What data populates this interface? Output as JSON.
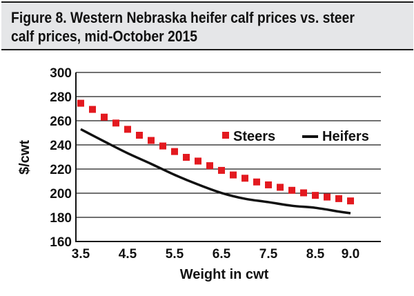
{
  "figure": {
    "title": "Figure 8. Western Nebraska heifer calf prices vs. steer calf prices, mid-October 2015"
  },
  "chart_data": {
    "type": "line",
    "xlabel": "Weight in cwt",
    "ylabel": "$/cwt",
    "xlim": [
      3.5,
      10.0
    ],
    "ylim": [
      160,
      300
    ],
    "x_ticks": [
      "3.5",
      "4.5",
      "5.5",
      "6.5",
      "7.5",
      "8.5",
      "9.0"
    ],
    "y_ticks": [
      "300",
      "280",
      "260",
      "240",
      "220",
      "200",
      "180",
      "160"
    ],
    "grid": "horizontal",
    "legend_position": "middle-right",
    "series": [
      {
        "name": "Steers",
        "style": "markers",
        "marker": "square",
        "color": "#e3191f",
        "x": [
          3.5,
          3.75,
          4.0,
          4.25,
          4.5,
          4.75,
          5.0,
          5.25,
          5.5,
          5.75,
          6.0,
          6.25,
          6.5,
          6.75,
          7.0,
          7.25,
          7.5,
          7.75,
          8.0,
          8.25,
          8.5,
          8.75,
          9.0,
          9.25
        ],
        "y": [
          274.5,
          269.4,
          263.0,
          258.1,
          252.9,
          248.0,
          243.7,
          239.1,
          234.5,
          229.7,
          226.6,
          222.8,
          218.9,
          215.1,
          212.4,
          209.3,
          206.9,
          204.9,
          202.4,
          200.3,
          198.2,
          196.8,
          195.5,
          193.6
        ]
      },
      {
        "name": "Heifers",
        "style": "line",
        "color": "#111111",
        "x": [
          3.5,
          4.0,
          4.5,
          5.0,
          5.5,
          6.0,
          6.5,
          7.0,
          7.5,
          8.0,
          8.5,
          9.0,
          9.25
        ],
        "y": [
          253,
          242.9,
          233.1,
          224.3,
          215.2,
          207.2,
          200.2,
          195.4,
          192.6,
          189.6,
          187.9,
          184.8,
          183.4
        ]
      }
    ]
  }
}
